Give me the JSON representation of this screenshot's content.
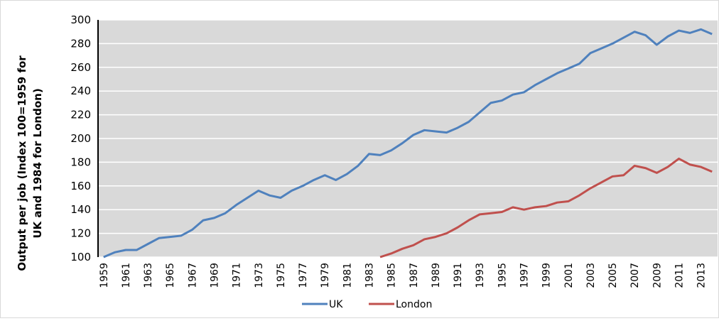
{
  "chart_data": {
    "type": "line",
    "y_label_lines": [
      "Output per job (Index 100=1959 for",
      "UK and 1984 for London)"
    ],
    "categories": [
      "1959",
      null,
      "1961",
      null,
      "1963",
      null,
      "1965",
      null,
      "1967",
      null,
      "1969",
      null,
      "1971",
      null,
      "1973",
      null,
      "1975",
      null,
      "1977",
      null,
      "1979",
      null,
      "1981",
      null,
      "1983",
      null,
      "1985",
      null,
      "1987",
      null,
      "1989",
      null,
      "1991",
      null,
      "1993",
      null,
      "1995",
      null,
      "1997",
      null,
      "1999",
      null,
      "2001",
      null,
      "2003",
      null,
      "2005",
      null,
      "2007",
      null,
      "2009",
      null,
      "2011",
      null,
      "2013",
      null
    ],
    "series": [
      {
        "name": "UK",
        "color": "#4f81bd",
        "values": [
          100,
          104,
          106,
          106,
          111,
          116,
          117,
          118,
          123,
          131,
          133,
          137,
          144,
          150,
          156,
          152,
          150,
          156,
          160,
          165,
          169,
          165,
          170,
          177,
          187,
          186,
          190,
          196,
          203,
          207,
          206,
          205,
          209,
          214,
          222,
          230,
          232,
          237,
          239,
          245,
          250,
          255,
          259,
          263,
          272,
          276,
          280,
          285,
          290,
          287,
          279,
          286,
          291,
          289,
          292,
          288
        ]
      },
      {
        "name": "London",
        "color": "#c0504d",
        "values": [
          null,
          null,
          null,
          null,
          null,
          null,
          null,
          null,
          null,
          null,
          null,
          null,
          null,
          null,
          null,
          null,
          null,
          null,
          null,
          null,
          null,
          null,
          null,
          null,
          null,
          100,
          103,
          107,
          110,
          115,
          117,
          120,
          125,
          131,
          136,
          137,
          138,
          142,
          140,
          142,
          143,
          146,
          147,
          152,
          158,
          163,
          168,
          169,
          177,
          175,
          171,
          176,
          183,
          178,
          176,
          172
        ]
      }
    ],
    "ylim": [
      100,
      300
    ],
    "yticks": [
      100,
      120,
      140,
      160,
      180,
      200,
      220,
      240,
      260,
      280,
      300
    ],
    "grid": true,
    "legend": "bottom"
  }
}
